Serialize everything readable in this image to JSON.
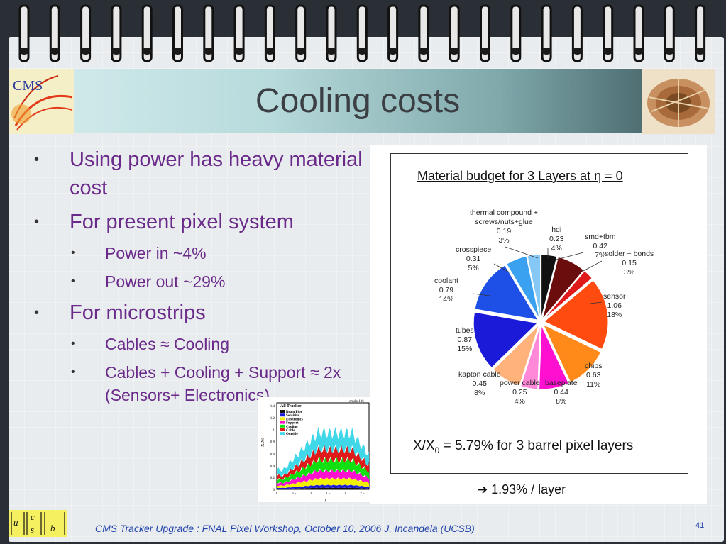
{
  "slide": {
    "title": "Cooling costs",
    "bullets": [
      {
        "level": 1,
        "text": "Using power has heavy material cost"
      },
      {
        "level": 1,
        "text": "For present pixel system"
      },
      {
        "level": 2,
        "text": "Power in  ~4%"
      },
      {
        "level": 2,
        "text": "Power out ~29%"
      },
      {
        "level": 1,
        "text": "For microstrips"
      },
      {
        "level": 2,
        "text": "Cables ≈ Cooling"
      },
      {
        "level": 2,
        "text": "Cables + Cooling + Support ≈ 2x (Sensors+ Electronics)"
      }
    ],
    "footer": "CMS Tracker Upgrade : FNAL Pixel Workshop, October 10, 2006   J. Incandela (UCSB)",
    "page_number": "41",
    "logo_left_text": "CMS",
    "logo_ucsb_letters": [
      "u",
      "c",
      "s",
      "b"
    ]
  },
  "figure": {
    "title": "Material budget for 3 Layers at η = 0",
    "summary": "X/X",
    "summary_sub": "0",
    "summary_rest": " = 5.79% for 3 barrel  pixel layers",
    "note": "➔ 1.93% / layer"
  },
  "chart_data": [
    {
      "type": "pie",
      "title": "Material budget for 3 Layers at η = 0",
      "slices": [
        {
          "name": "hdi",
          "value": 0.23,
          "percent": "4%",
          "color": "#111111"
        },
        {
          "name": "smd+tbm",
          "value": 0.42,
          "percent": "7%",
          "color": "#6b0d0d"
        },
        {
          "name": "solder + bonds",
          "value": 0.15,
          "percent": "3%",
          "color": "#e01a1a"
        },
        {
          "name": "sensor",
          "value": 1.06,
          "percent": "18%",
          "color": "#ff4a10"
        },
        {
          "name": "chips",
          "value": 0.63,
          "percent": "11%",
          "color": "#ff8a1a"
        },
        {
          "name": "baseplate",
          "value": 0.44,
          "percent": "8%",
          "color": "#ff10d0"
        },
        {
          "name": "power cable",
          "value": 0.25,
          "percent": "4%",
          "color": "#ff88d8"
        },
        {
          "name": "kapton cable",
          "value": 0.45,
          "percent": "8%",
          "color": "#ffb27a"
        },
        {
          "name": "tubes",
          "value": 0.87,
          "percent": "15%",
          "color": "#1a1ad8"
        },
        {
          "name": "coolant",
          "value": 0.79,
          "percent": "14%",
          "color": "#1e50e8"
        },
        {
          "name": "crosspiece",
          "value": 0.31,
          "percent": "5%",
          "color": "#3aa0f0"
        },
        {
          "name": "thermal compound + screws/nuts+glue",
          "value": 0.19,
          "percent": "3%",
          "color": "#86c8f5"
        }
      ],
      "labels": [
        {
          "text": "thermal compound +\nscrews/nuts+glue\n0.19\n3%"
        },
        {
          "text": "hdi\n0.23\n4%"
        },
        {
          "text": "smd+tbm\n0.42\n7%"
        },
        {
          "text": "solder + bonds\n0.15\n3%"
        },
        {
          "text": "crosspiece\n0.31\n5%"
        },
        {
          "text": "coolant\n0.79\n14%"
        },
        {
          "text": "sensor\n1.06\n18%"
        },
        {
          "text": "tubes\n0.87\n15%"
        },
        {
          "text": "chips\n0.63\n11%"
        },
        {
          "text": "kapton cable\n0.45\n8%"
        },
        {
          "text": "power cable\n0.25\n4%"
        },
        {
          "text": "baseplate\n0.44\n8%"
        }
      ]
    },
    {
      "type": "area",
      "title": "All Tracker",
      "corner_text": "cmslo 126",
      "ylabel": "X/X0",
      "xlabel": "η",
      "xticks": [
        "0",
        "0.5",
        "1",
        "1.5",
        "2",
        "2.5"
      ],
      "yticks": [
        "0",
        "0.2",
        "0.4",
        "0.6",
        "0.8",
        "1",
        "1.2",
        "1.4"
      ],
      "xlim": [
        0,
        2.7
      ],
      "ylim": [
        0,
        1.45
      ],
      "series": [
        {
          "name": "Beam Pipe",
          "color": "#111111"
        },
        {
          "name": "Sensitive",
          "color": "#1a1ad8"
        },
        {
          "name": "Electronics",
          "color": "#f0f000"
        },
        {
          "name": "Support",
          "color": "#ff10d0"
        },
        {
          "name": "Cooling",
          "color": "#10e010"
        },
        {
          "name": "Cable",
          "color": "#e01a1a"
        },
        {
          "name": "Outside",
          "color": "#40d8e8"
        }
      ]
    }
  ]
}
